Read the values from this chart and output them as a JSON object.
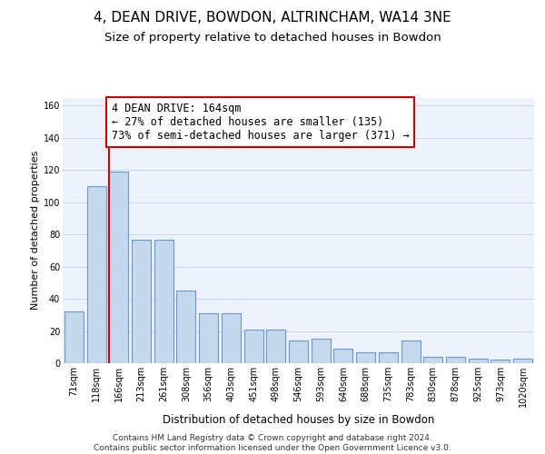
{
  "title1": "4, DEAN DRIVE, BOWDON, ALTRINCHAM, WA14 3NE",
  "title2": "Size of property relative to detached houses in Bowdon",
  "xlabel": "Distribution of detached houses by size in Bowdon",
  "ylabel": "Number of detached properties",
  "categories": [
    "71sqm",
    "118sqm",
    "166sqm",
    "213sqm",
    "261sqm",
    "308sqm",
    "356sqm",
    "403sqm",
    "451sqm",
    "498sqm",
    "546sqm",
    "593sqm",
    "640sqm",
    "688sqm",
    "735sqm",
    "783sqm",
    "830sqm",
    "878sqm",
    "925sqm",
    "973sqm",
    "1020sqm"
  ],
  "values": [
    32,
    110,
    119,
    77,
    77,
    45,
    31,
    31,
    21,
    21,
    14,
    15,
    9,
    7,
    7,
    14,
    4,
    4,
    3,
    2,
    3
  ],
  "bar_color": "#c5d8ee",
  "bar_edge_color": "#6699cc",
  "background_color": "#eef2fb",
  "grid_color": "#d0d8f0",
  "vline_x_index": 2,
  "vline_color": "#cc0000",
  "annotation_text": "4 DEAN DRIVE: 164sqm\n← 27% of detached houses are smaller (135)\n73% of semi-detached houses are larger (371) →",
  "annotation_box_color": "#ffffff",
  "annotation_box_edge": "#cc0000",
  "ylim": [
    0,
    165
  ],
  "yticks": [
    0,
    20,
    40,
    60,
    80,
    100,
    120,
    140,
    160
  ],
  "footer": "Contains HM Land Registry data © Crown copyright and database right 2024.\nContains public sector information licensed under the Open Government Licence v3.0.",
  "title1_fontsize": 11,
  "title2_fontsize": 9.5,
  "xlabel_fontsize": 8.5,
  "ylabel_fontsize": 8,
  "tick_fontsize": 7,
  "annotation_fontsize": 8.5,
  "footer_fontsize": 6.5
}
